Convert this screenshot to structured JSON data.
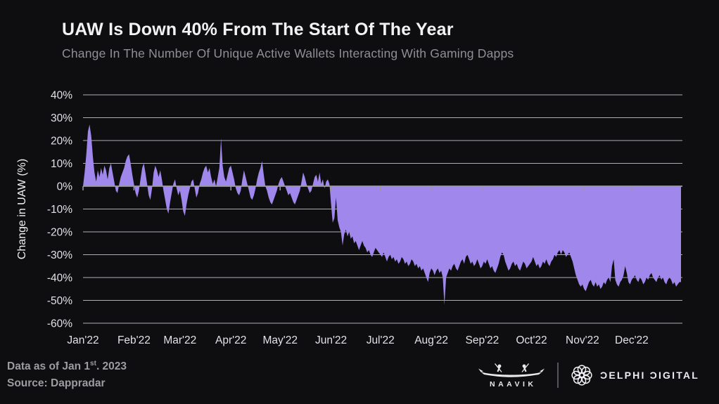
{
  "header": {
    "title": "UAW Is Down 40% From The Start Of The Year",
    "subtitle": "Change In The Number Of Unique Active Wallets Interacting With Gaming Dapps"
  },
  "footer": {
    "note_prefix": "Data as of Jan 1",
    "note_sup": "st",
    "note_suffix": ". 2023",
    "source": "Source: Dappradar",
    "naavik_label": "NAAVIK",
    "delphi_label": "ƆELPHI ƆIGITAL"
  },
  "chart_data": {
    "type": "area",
    "title": "UAW Is Down 40% From The Start Of The Year",
    "subtitle": "Change In The Number Of Unique Active Wallets Interacting With Gaming Dapps",
    "xlabel": "",
    "ylabel": "Change in UAW (%)",
    "ylim": [
      -60,
      40
    ],
    "xlim_days": [
      1,
      365
    ],
    "grid": true,
    "legend": false,
    "baseline": 0,
    "ytick_values": [
      40,
      30,
      20,
      10,
      0,
      -10,
      -20,
      -30,
      -40,
      -50,
      -60
    ],
    "ytick_labels": [
      "40%",
      "30%",
      "20%",
      "10%",
      "0%",
      "-10%",
      "-20%",
      "-30%",
      "-40%",
      "-50%",
      "-60%"
    ],
    "x_months": [
      {
        "day": 1,
        "label": "Jan'22"
      },
      {
        "day": 32,
        "label": "Feb'22"
      },
      {
        "day": 60,
        "label": "Mar'22"
      },
      {
        "day": 91,
        "label": "Apr'22"
      },
      {
        "day": 121,
        "label": "May'22"
      },
      {
        "day": 152,
        "label": "Jun'22"
      },
      {
        "day": 182,
        "label": "Jul'22"
      },
      {
        "day": 213,
        "label": "Aug'22"
      },
      {
        "day": 244,
        "label": "Sep'22"
      },
      {
        "day": 274,
        "label": "Oct'22"
      },
      {
        "day": 305,
        "label": "Nov'22"
      },
      {
        "day": 335,
        "label": "Dec'22"
      }
    ],
    "colors": {
      "background": "#0e0e11",
      "fill": "#a087ec",
      "gridline": "#d6d6db",
      "zero_line": "#9a9aa0",
      "tick_label": "#e2e2e6",
      "axis_title": "#f0f0f3",
      "title": "#f2f2f2",
      "subtitle": "#8f8f95",
      "footer_text": "#9c9ca1"
    },
    "series": [
      {
        "name": "Change in UAW (%)",
        "unit": "%",
        "cadence": "daily, Jan 1 2022 - Dec 31 2022 (index 0 = Jan 1)",
        "values": [
          0,
          6,
          14,
          24,
          27,
          22,
          13,
          6,
          2,
          7,
          4,
          8,
          5,
          9,
          7,
          3,
          8,
          10,
          6,
          2,
          -2,
          -3,
          1,
          4,
          6,
          8,
          11,
          13,
          14,
          10,
          5,
          1,
          -3,
          -5,
          -2,
          3,
          8,
          10,
          6,
          1,
          -4,
          -6,
          -1,
          6,
          9,
          7,
          4,
          7,
          3,
          -2,
          -6,
          -10,
          -12,
          -7,
          -3,
          1,
          3,
          -1,
          -4,
          -2,
          -6,
          -11,
          -13,
          -8,
          -4,
          -1,
          2,
          3,
          -1,
          -5,
          -3,
          1,
          3,
          6,
          8,
          9,
          6,
          8,
          4,
          1,
          3,
          0,
          4,
          8,
          21,
          9,
          4,
          2,
          5,
          8,
          9,
          6,
          3,
          -1,
          -3,
          -4,
          -2,
          3,
          7,
          4,
          1,
          -2,
          -5,
          -6,
          -4,
          -1,
          3,
          6,
          8,
          11,
          5,
          0,
          -2,
          -5,
          -7,
          -8,
          -6,
          -4,
          -2,
          1,
          3,
          4,
          2,
          0,
          -2,
          -4,
          -3,
          -5,
          -7,
          -8,
          -6,
          -4,
          -2,
          2,
          6,
          4,
          1,
          -1,
          -3,
          -2,
          1,
          4,
          5,
          2,
          6,
          1,
          3,
          -1,
          2,
          3,
          1,
          -8,
          -16,
          -14,
          -5,
          -15,
          -18,
          -20,
          -26,
          -21,
          -19,
          -22,
          -20,
          -23,
          -22,
          -25,
          -24,
          -26,
          -28,
          -26,
          -24,
          -26,
          -27,
          -29,
          -28,
          -30,
          -31,
          -29,
          -27,
          -28,
          -29,
          -30,
          -31,
          -29,
          -31,
          -33,
          -31,
          -30,
          -32,
          -31,
          -33,
          -32,
          -34,
          -33,
          -31,
          -32,
          -34,
          -33,
          -35,
          -34,
          -32,
          -33,
          -35,
          -34,
          -36,
          -35,
          -37,
          -36,
          -38,
          -40,
          -42,
          -38,
          -36,
          -37,
          -39,
          -37,
          -36,
          -38,
          -37,
          -40,
          -52,
          -40,
          -38,
          -36,
          -37,
          -35,
          -34,
          -36,
          -37,
          -35,
          -33,
          -32,
          -34,
          -31,
          -30,
          -32,
          -34,
          -33,
          -35,
          -34,
          -32,
          -34,
          -36,
          -35,
          -33,
          -34,
          -32,
          -34,
          -36,
          -35,
          -37,
          -38,
          -36,
          -34,
          -31,
          -29,
          -30,
          -33,
          -35,
          -37,
          -36,
          -34,
          -33,
          -35,
          -34,
          -36,
          -37,
          -35,
          -33,
          -34,
          -36,
          -35,
          -34,
          -33,
          -31,
          -33,
          -35,
          -34,
          -36,
          -35,
          -33,
          -34,
          -32,
          -34,
          -35,
          -33,
          -32,
          -30,
          -31,
          -29,
          -28,
          -30,
          -28,
          -29,
          -31,
          -30,
          -29,
          -31,
          -33,
          -36,
          -39,
          -41,
          -43,
          -44,
          -43,
          -45,
          -46,
          -44,
          -42,
          -41,
          -43,
          -44,
          -42,
          -44,
          -43,
          -45,
          -44,
          -42,
          -43,
          -41,
          -40,
          -42,
          -35,
          -32,
          -41,
          -43,
          -44,
          -42,
          -41,
          -39,
          -35,
          -38,
          -42,
          -43,
          -41,
          -40,
          -39,
          -41,
          -42,
          -40,
          -41,
          -43,
          -42,
          -40,
          -41,
          -39,
          -38,
          -40,
          -41,
          -42,
          -40,
          -39,
          -41,
          -40,
          -42,
          -43,
          -41,
          -40,
          -41,
          -43,
          -42,
          -44,
          -43,
          -42,
          -42
        ]
      }
    ]
  }
}
